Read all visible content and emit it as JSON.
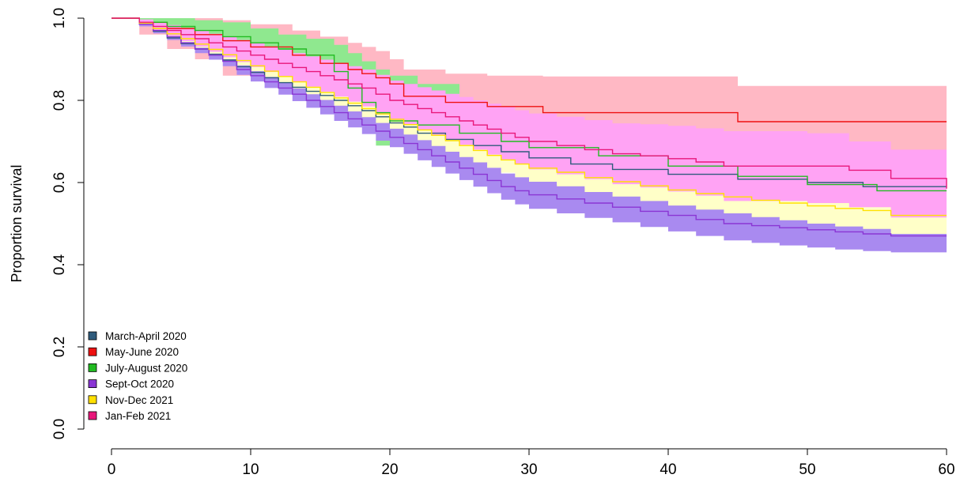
{
  "chart_data": {
    "type": "line",
    "step": true,
    "xlabel": "",
    "ylabel": "Proportion survival",
    "xlim": [
      0,
      60
    ],
    "ylim": [
      0,
      1
    ],
    "xticks": [
      "0",
      "10",
      "20",
      "30",
      "40",
      "50",
      "60"
    ],
    "yticks": [
      "0.0",
      "0.2",
      "0.4",
      "0.6",
      "0.8",
      "1.0"
    ],
    "grid": false,
    "legend_position": "bottom-left",
    "series": [
      {
        "name": "March-April 2020",
        "color": "#2f5b7c",
        "band_color": "#c6ddf3",
        "x": [
          0,
          2,
          3,
          4,
          5,
          6,
          7,
          8,
          9,
          10,
          11,
          12,
          13,
          14,
          15,
          16,
          17,
          18,
          19,
          20,
          21,
          22,
          24,
          26,
          28,
          30,
          33,
          36,
          40,
          45,
          50,
          54
        ],
        "y": [
          1.0,
          0.985,
          0.968,
          0.952,
          0.938,
          0.925,
          0.912,
          0.898,
          0.882,
          0.868,
          0.855,
          0.843,
          0.832,
          0.822,
          0.812,
          0.8,
          0.787,
          0.775,
          0.76,
          0.745,
          0.735,
          0.72,
          0.705,
          0.69,
          0.675,
          0.66,
          0.645,
          0.632,
          0.62,
          0.608,
          0.6,
          0.59
        ],
        "lower": [
          1.0,
          0.98,
          0.962,
          0.945,
          0.93,
          0.916,
          0.902,
          0.887,
          0.87,
          0.855,
          0.841,
          0.828,
          0.816,
          0.805,
          0.794,
          0.781,
          0.767,
          0.754,
          0.738,
          0.722,
          0.711,
          0.695,
          0.679,
          0.663,
          0.647,
          0.631,
          0.615,
          0.601,
          0.588,
          0.575,
          0.566,
          0.555
        ],
        "upper": [
          1.0,
          0.99,
          0.974,
          0.959,
          0.946,
          0.934,
          0.922,
          0.909,
          0.894,
          0.881,
          0.869,
          0.858,
          0.848,
          0.839,
          0.83,
          0.819,
          0.807,
          0.796,
          0.782,
          0.768,
          0.759,
          0.745,
          0.731,
          0.717,
          0.703,
          0.689,
          0.675,
          0.663,
          0.652,
          0.641,
          0.634,
          0.625
        ]
      },
      {
        "name": "May-June 2020",
        "color": "#ee1111",
        "band_color": "#ffb8c4",
        "x": [
          0,
          2,
          4,
          6,
          8,
          10,
          13,
          15,
          17,
          18,
          19,
          20,
          21,
          24,
          27,
          31,
          45,
          60
        ],
        "y": [
          1.0,
          0.99,
          0.975,
          0.96,
          0.945,
          0.93,
          0.91,
          0.89,
          0.875,
          0.865,
          0.855,
          0.84,
          0.81,
          0.795,
          0.785,
          0.77,
          0.748,
          0.748
        ],
        "lower": [
          1.0,
          0.96,
          0.925,
          0.9,
          0.86,
          0.86,
          0.835,
          0.82,
          0.8,
          0.78,
          0.765,
          0.755,
          0.735,
          0.72,
          0.71,
          0.7,
          0.67,
          0.67
        ],
        "upper": [
          1.0,
          1.0,
          1.0,
          1.0,
          0.995,
          0.985,
          0.97,
          0.955,
          0.94,
          0.93,
          0.92,
          0.9,
          0.875,
          0.865,
          0.86,
          0.858,
          0.835,
          0.835
        ]
      },
      {
        "name": "July-August 2020",
        "color": "#22bb22",
        "band_color": "#8fe88f",
        "x": [
          0,
          2,
          4,
          6,
          8,
          10,
          12,
          14,
          16,
          17,
          18,
          19,
          20,
          22,
          25,
          28,
          30,
          35,
          40,
          45,
          50,
          55
        ],
        "y": [
          1.0,
          0.99,
          0.98,
          0.97,
          0.955,
          0.94,
          0.925,
          0.91,
          0.87,
          0.83,
          0.795,
          0.77,
          0.75,
          0.74,
          0.72,
          0.7,
          0.685,
          0.665,
          0.64,
          0.615,
          0.595,
          0.58
        ],
        "lower": [
          1.0,
          0.985,
          0.97,
          0.955,
          0.94,
          0.925,
          0.905,
          0.88,
          0.78,
          0.76,
          0.74,
          0.69,
          0.69,
          0.68,
          0.66,
          0.64,
          0.625,
          0.61,
          0.6,
          0.585,
          0.565,
          0.555
        ],
        "upper": [
          1.0,
          1.0,
          1.0,
          0.995,
          0.99,
          0.975,
          0.96,
          0.95,
          0.935,
          0.915,
          0.895,
          0.875,
          0.86,
          0.84,
          0.78,
          0.745,
          0.73,
          0.715,
          0.7,
          0.68,
          0.61,
          0.59
        ]
      },
      {
        "name": "Sept-Oct 2020",
        "color": "#8a35d4",
        "band_color": "#a98af0",
        "x": [
          0,
          2,
          3,
          4,
          5,
          6,
          7,
          8,
          9,
          10,
          11,
          12,
          13,
          14,
          15,
          16,
          17,
          18,
          19,
          20,
          21,
          22,
          23,
          24,
          25,
          26,
          27,
          28,
          29,
          30,
          32,
          34,
          36,
          38,
          40,
          42,
          44,
          46,
          48,
          50,
          52,
          54,
          56
        ],
        "y": [
          1.0,
          0.985,
          0.97,
          0.955,
          0.94,
          0.925,
          0.91,
          0.895,
          0.875,
          0.86,
          0.845,
          0.83,
          0.815,
          0.8,
          0.785,
          0.77,
          0.755,
          0.74,
          0.725,
          0.71,
          0.695,
          0.68,
          0.665,
          0.65,
          0.635,
          0.62,
          0.605,
          0.59,
          0.58,
          0.57,
          0.56,
          0.55,
          0.54,
          0.53,
          0.52,
          0.51,
          0.5,
          0.495,
          0.49,
          0.485,
          0.48,
          0.475,
          0.47
        ],
        "lower": [
          1.0,
          0.98,
          0.963,
          0.947,
          0.931,
          0.915,
          0.899,
          0.883,
          0.862,
          0.846,
          0.83,
          0.814,
          0.798,
          0.782,
          0.766,
          0.75,
          0.734,
          0.718,
          0.702,
          0.686,
          0.67,
          0.654,
          0.638,
          0.622,
          0.606,
          0.59,
          0.574,
          0.558,
          0.547,
          0.536,
          0.525,
          0.514,
          0.503,
          0.492,
          0.481,
          0.47,
          0.459,
          0.453,
          0.447,
          0.442,
          0.437,
          0.433,
          0.43
        ],
        "upper": [
          1.0,
          0.99,
          0.977,
          0.963,
          0.949,
          0.935,
          0.921,
          0.907,
          0.888,
          0.874,
          0.86,
          0.846,
          0.832,
          0.818,
          0.804,
          0.79,
          0.776,
          0.762,
          0.748,
          0.734,
          0.72,
          0.706,
          0.692,
          0.678,
          0.664,
          0.65,
          0.636,
          0.622,
          0.613,
          0.604,
          0.595,
          0.586,
          0.577,
          0.568,
          0.559,
          0.55,
          0.541,
          0.537,
          0.533,
          0.528,
          0.523,
          0.517,
          0.51
        ]
      },
      {
        "name": "Nov-Dec 2021",
        "color": "#ffe000",
        "band_color": "#ffffc8",
        "x": [
          0,
          2,
          3,
          4,
          5,
          6,
          7,
          8,
          9,
          10,
          11,
          12,
          13,
          14,
          15,
          16,
          17,
          18,
          19,
          20,
          21,
          22,
          23,
          24,
          25,
          26,
          27,
          28,
          29,
          30,
          32,
          34,
          36,
          38,
          40,
          42,
          44,
          46,
          48,
          50,
          52,
          54,
          56
        ],
        "y": [
          1.0,
          0.988,
          0.975,
          0.962,
          0.95,
          0.937,
          0.924,
          0.911,
          0.897,
          0.884,
          0.871,
          0.858,
          0.845,
          0.832,
          0.819,
          0.806,
          0.793,
          0.78,
          0.767,
          0.754,
          0.741,
          0.728,
          0.715,
          0.702,
          0.69,
          0.678,
          0.666,
          0.655,
          0.645,
          0.635,
          0.625,
          0.612,
          0.602,
          0.592,
          0.582,
          0.573,
          0.565,
          0.557,
          0.55,
          0.543,
          0.537,
          0.532,
          0.52
        ],
        "lower": [
          1.0,
          0.984,
          0.969,
          0.955,
          0.942,
          0.928,
          0.914,
          0.9,
          0.885,
          0.871,
          0.857,
          0.843,
          0.829,
          0.815,
          0.801,
          0.787,
          0.773,
          0.759,
          0.745,
          0.731,
          0.717,
          0.703,
          0.689,
          0.675,
          0.662,
          0.649,
          0.636,
          0.624,
          0.613,
          0.602,
          0.591,
          0.577,
          0.566,
          0.555,
          0.544,
          0.534,
          0.525,
          0.516,
          0.508,
          0.5,
          0.493,
          0.487,
          0.475
        ],
        "upper": [
          1.0,
          0.992,
          0.981,
          0.969,
          0.958,
          0.946,
          0.934,
          0.922,
          0.909,
          0.897,
          0.885,
          0.873,
          0.861,
          0.849,
          0.837,
          0.825,
          0.813,
          0.801,
          0.789,
          0.777,
          0.765,
          0.753,
          0.741,
          0.729,
          0.718,
          0.707,
          0.696,
          0.686,
          0.677,
          0.668,
          0.659,
          0.647,
          0.638,
          0.629,
          0.62,
          0.612,
          0.605,
          0.598,
          0.592,
          0.586,
          0.581,
          0.577,
          0.565
        ]
      },
      {
        "name": "Jan-Feb 2021",
        "color": "#e8177a",
        "band_color": "#ffa3f4",
        "x": [
          0,
          2,
          3,
          4,
          5,
          6,
          7,
          8,
          9,
          10,
          11,
          12,
          13,
          14,
          15,
          16,
          17,
          18,
          19,
          20,
          21,
          22,
          23,
          24,
          25,
          26,
          27,
          28,
          29,
          30,
          32,
          34,
          36,
          38,
          40,
          42,
          44,
          50,
          53,
          56,
          60
        ],
        "y": [
          1.0,
          0.99,
          0.98,
          0.97,
          0.96,
          0.95,
          0.94,
          0.93,
          0.92,
          0.91,
          0.9,
          0.89,
          0.88,
          0.87,
          0.86,
          0.85,
          0.84,
          0.83,
          0.815,
          0.8,
          0.79,
          0.78,
          0.77,
          0.76,
          0.75,
          0.74,
          0.73,
          0.72,
          0.71,
          0.7,
          0.69,
          0.68,
          0.67,
          0.665,
          0.658,
          0.65,
          0.64,
          0.64,
          0.63,
          0.61,
          0.585
        ],
        "lower": [
          1.0,
          0.983,
          0.97,
          0.957,
          0.944,
          0.931,
          0.918,
          0.905,
          0.893,
          0.881,
          0.869,
          0.857,
          0.845,
          0.833,
          0.821,
          0.809,
          0.797,
          0.785,
          0.768,
          0.752,
          0.74,
          0.728,
          0.716,
          0.704,
          0.692,
          0.68,
          0.668,
          0.656,
          0.644,
          0.632,
          0.62,
          0.608,
          0.596,
          0.588,
          0.578,
          0.568,
          0.555,
          0.55,
          0.54,
          0.515,
          0.5
        ],
        "upper": [
          1.0,
          0.997,
          0.99,
          0.983,
          0.976,
          0.969,
          0.962,
          0.955,
          0.947,
          0.939,
          0.931,
          0.923,
          0.915,
          0.907,
          0.899,
          0.891,
          0.883,
          0.875,
          0.862,
          0.848,
          0.84,
          0.832,
          0.824,
          0.816,
          0.808,
          0.8,
          0.792,
          0.784,
          0.776,
          0.768,
          0.76,
          0.752,
          0.744,
          0.742,
          0.738,
          0.732,
          0.725,
          0.72,
          0.7,
          0.68,
          0.67
        ]
      }
    ]
  }
}
